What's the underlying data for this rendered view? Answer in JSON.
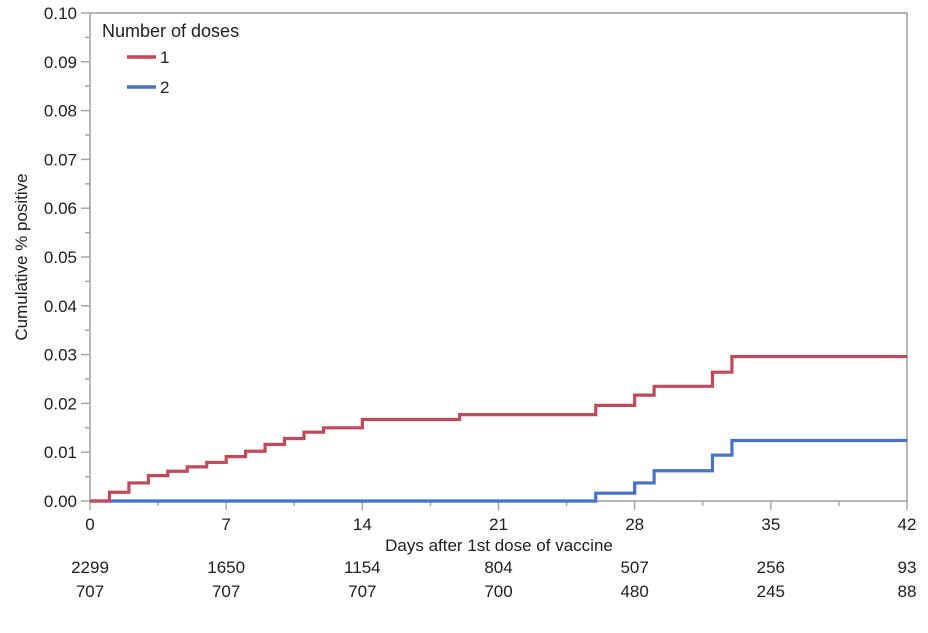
{
  "chart_data": {
    "type": "line",
    "subtype": "step-cumulative-incidence",
    "title": "",
    "xlabel": "Days after 1st dose of vaccine",
    "ylabel": "Cumulative % positive",
    "xlim": [
      0,
      42
    ],
    "ylim": [
      0,
      0.1
    ],
    "x_major_ticks": [
      0,
      7,
      14,
      21,
      28,
      35,
      42
    ],
    "x_minor_step": 3.5,
    "y_major_ticks": [
      "0.00",
      "0.01",
      "0.02",
      "0.03",
      "0.04",
      "0.05",
      "0.06",
      "0.07",
      "0.08",
      "0.09",
      "0.10"
    ],
    "y_minor_step": 0.005,
    "grid": false,
    "frame_color": "#a3a3a3",
    "text_color": "#202020",
    "legend": {
      "title": "Number of doses",
      "position": "top-left-inside",
      "items": [
        {
          "label": "1",
          "color": "#c04a59"
        },
        {
          "label": "2",
          "color": "#4673c8"
        }
      ]
    },
    "series": [
      {
        "name": "1",
        "color": "#c04a59",
        "step_points_day_value": [
          [
            0,
            0.0
          ],
          [
            1,
            0.0018
          ],
          [
            2,
            0.0037
          ],
          [
            3,
            0.0052
          ],
          [
            4,
            0.0061
          ],
          [
            5,
            0.007
          ],
          [
            6,
            0.0079
          ],
          [
            7,
            0.0091
          ],
          [
            8,
            0.0102
          ],
          [
            9,
            0.0116
          ],
          [
            10,
            0.0128
          ],
          [
            11,
            0.0141
          ],
          [
            12,
            0.015
          ],
          [
            14,
            0.0167
          ],
          [
            19,
            0.0177
          ],
          [
            26,
            0.0196
          ],
          [
            28,
            0.0217
          ],
          [
            29,
            0.0235
          ],
          [
            32,
            0.0264
          ],
          [
            33,
            0.0296
          ]
        ]
      },
      {
        "name": "2",
        "color": "#4673c8",
        "step_points_day_value": [
          [
            0,
            0.0
          ],
          [
            26,
            0.0016
          ],
          [
            28,
            0.0037
          ],
          [
            29,
            0.0062
          ],
          [
            32,
            0.0094
          ],
          [
            33,
            0.0124
          ]
        ]
      }
    ],
    "at_risk_table": {
      "x_days": [
        0,
        7,
        14,
        21,
        28,
        35,
        42
      ],
      "rows": [
        {
          "series": "1",
          "color": "#c04a59",
          "values": [
            "2299",
            "1650",
            "1154",
            "804",
            "507",
            "256",
            "93"
          ]
        },
        {
          "series": "2",
          "color": "#4673c8",
          "values": [
            "707",
            "707",
            "707",
            "700",
            "480",
            "245",
            "88"
          ]
        }
      ]
    }
  }
}
